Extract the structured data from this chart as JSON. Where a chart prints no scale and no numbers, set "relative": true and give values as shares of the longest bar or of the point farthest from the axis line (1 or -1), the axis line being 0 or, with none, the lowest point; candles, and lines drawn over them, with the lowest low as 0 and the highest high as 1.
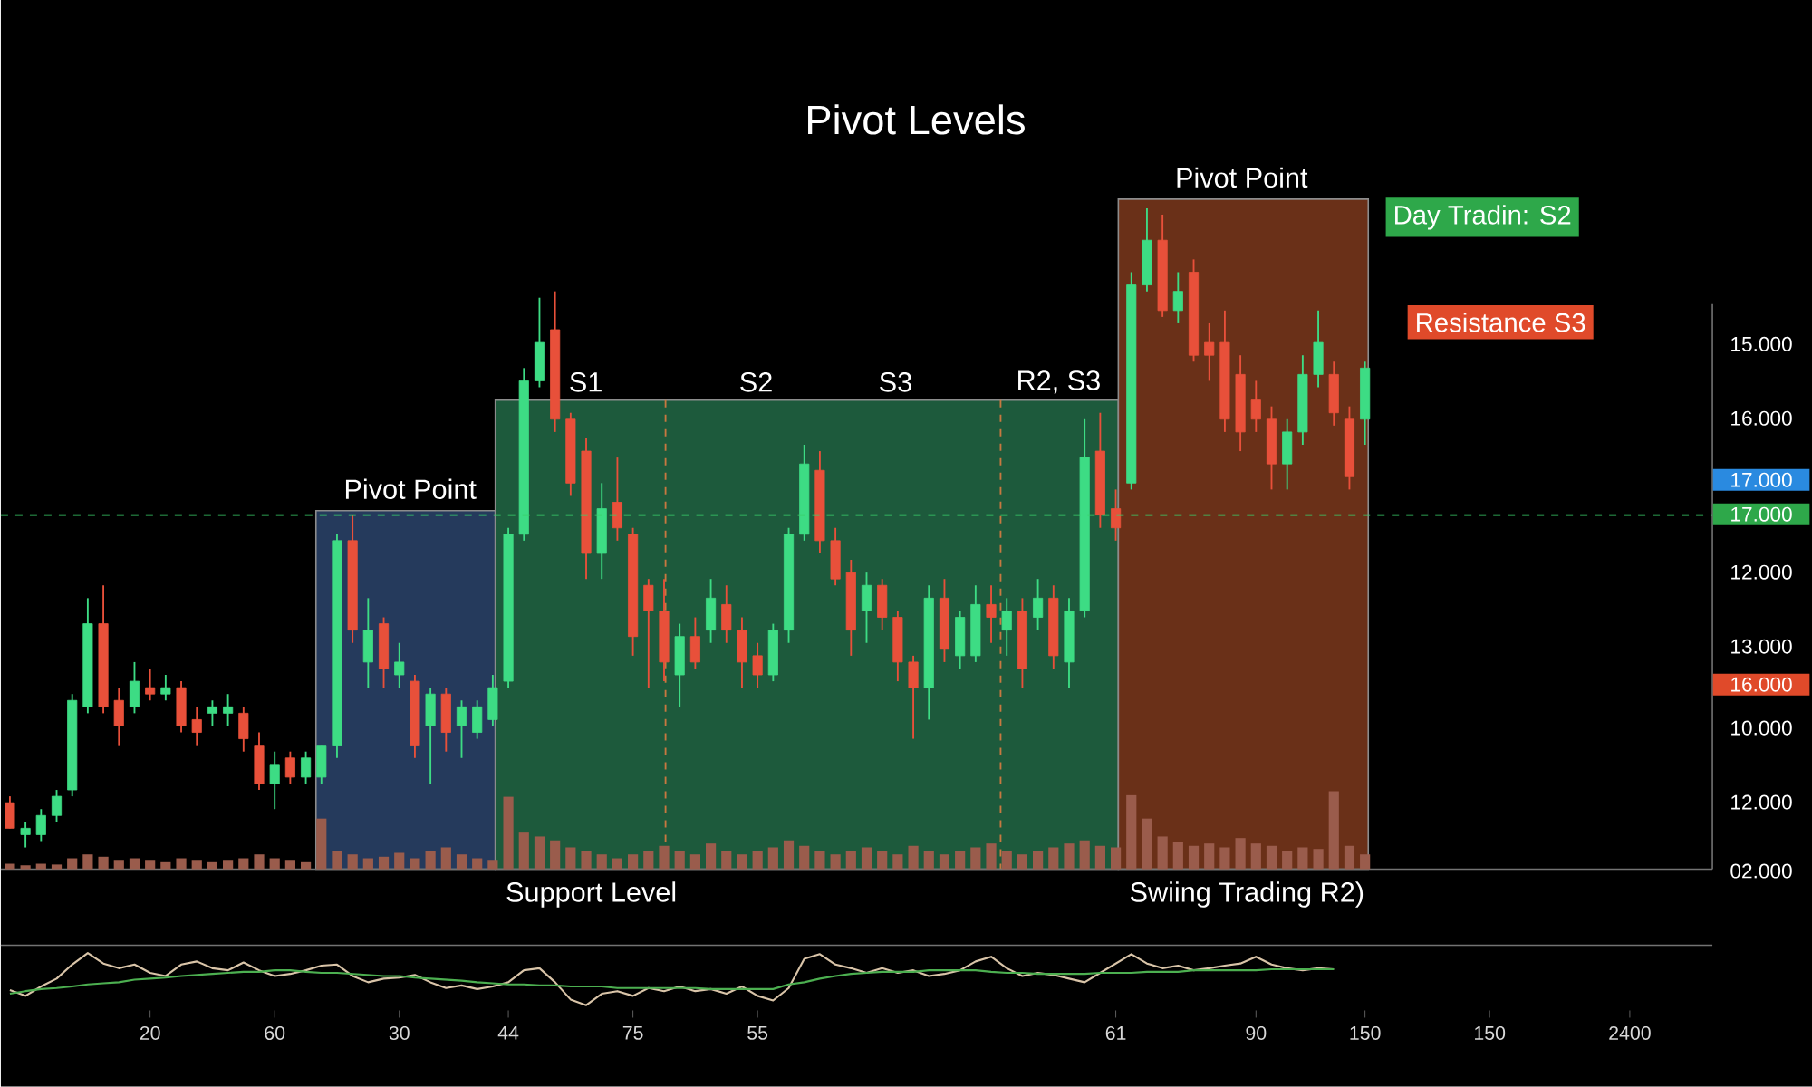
{
  "chart_data": [
    {
      "type": "candlestick",
      "title": "Pivot Levels",
      "relative": true,
      "tick_labels": false,
      "categories": [
        null,
        null,
        null,
        null,
        null,
        null,
        null,
        null,
        null,
        null,
        null,
        null,
        null,
        null,
        null,
        null,
        null,
        null,
        null,
        null,
        null,
        null,
        null,
        null,
        null,
        null,
        null,
        null,
        null,
        null,
        null,
        null,
        null,
        null,
        null,
        null,
        null,
        null,
        null,
        null,
        null,
        null,
        null,
        null,
        null,
        null,
        null,
        null,
        null,
        null,
        null,
        null,
        null,
        null,
        null,
        null,
        null,
        null,
        null,
        null,
        null,
        null,
        null,
        null,
        null,
        null,
        null,
        null,
        null,
        null,
        null,
        null,
        null,
        null,
        null,
        null,
        null,
        null,
        null,
        null,
        null,
        null,
        null,
        null,
        null,
        null,
        null,
        null,
        null,
        null,
        null,
        null,
        null,
        null,
        null,
        null,
        null,
        null,
        null,
        null,
        null,
        null,
        null,
        null,
        null
      ],
      "ohlc": [
        [
          0.07,
          0.08,
          0.03,
          0.03
        ],
        [
          0.02,
          0.04,
          0,
          0.03
        ],
        [
          0.02,
          0.06,
          0.01,
          0.05
        ],
        [
          0.05,
          0.09,
          0.04,
          0.08
        ],
        [
          0.09,
          0.24,
          0.08,
          0.23
        ],
        [
          0.22,
          0.39,
          0.21,
          0.35
        ],
        [
          0.35,
          0.41,
          0.21,
          0.22
        ],
        [
          0.23,
          0.25,
          0.16,
          0.19
        ],
        [
          0.22,
          0.29,
          0.21,
          0.26
        ],
        [
          0.25,
          0.28,
          0.23,
          0.24
        ],
        [
          0.24,
          0.27,
          0.23,
          0.25
        ],
        [
          0.25,
          0.26,
          0.18,
          0.19
        ],
        [
          0.2,
          0.22,
          0.16,
          0.18
        ],
        [
          0.21,
          0.23,
          0.19,
          0.22
        ],
        [
          0.21,
          0.24,
          0.19,
          0.22
        ],
        [
          0.21,
          0.22,
          0.15,
          0.17
        ],
        [
          0.16,
          0.18,
          0.09,
          0.1
        ],
        [
          0.1,
          0.15,
          0.06,
          0.13
        ],
        [
          0.14,
          0.15,
          0.1,
          0.11
        ],
        [
          0.11,
          0.15,
          0.1,
          0.14
        ],
        [
          0.11,
          0.16,
          0.1,
          0.16
        ],
        [
          0.16,
          0.49,
          0.14,
          0.48
        ],
        [
          0.48,
          0.52,
          0.32,
          0.34
        ],
        [
          0.29,
          0.39,
          0.25,
          0.34
        ],
        [
          0.35,
          0.36,
          0.25,
          0.28
        ],
        [
          0.27,
          0.32,
          0.25,
          0.29
        ],
        [
          0.26,
          0.27,
          0.14,
          0.16
        ],
        [
          0.19,
          0.25,
          0.1,
          0.24
        ],
        [
          0.24,
          0.25,
          0.15,
          0.18
        ],
        [
          0.19,
          0.23,
          0.14,
          0.22
        ],
        [
          0.18,
          0.23,
          0.17,
          0.22
        ],
        [
          0.2,
          0.27,
          0.19,
          0.25
        ],
        [
          0.26,
          0.5,
          0.25,
          0.49
        ],
        [
          0.49,
          0.75,
          0.48,
          0.73
        ],
        [
          0.73,
          0.86,
          0.72,
          0.79
        ],
        [
          0.81,
          0.87,
          0.65,
          0.67
        ],
        [
          0.67,
          0.68,
          0.55,
          0.57
        ],
        [
          0.62,
          0.64,
          0.42,
          0.46
        ],
        [
          0.46,
          0.57,
          0.42,
          0.53
        ],
        [
          0.54,
          0.61,
          0.48,
          0.5
        ],
        [
          0.49,
          0.5,
          0.3,
          0.33
        ],
        [
          0.41,
          0.42,
          0.25,
          0.37
        ],
        [
          0.37,
          0.42,
          0.26,
          0.29
        ],
        [
          0.27,
          0.35,
          0.22,
          0.33
        ],
        [
          0.33,
          0.36,
          0.28,
          0.29
        ],
        [
          0.34,
          0.42,
          0.32,
          0.39
        ],
        [
          0.38,
          0.41,
          0.32,
          0.34
        ],
        [
          0.34,
          0.36,
          0.25,
          0.29
        ],
        [
          0.3,
          0.32,
          0.25,
          0.27
        ],
        [
          0.27,
          0.35,
          0.26,
          0.34
        ],
        [
          0.34,
          0.5,
          0.32,
          0.49
        ],
        [
          0.49,
          0.63,
          0.48,
          0.6
        ],
        [
          0.59,
          0.62,
          0.46,
          0.48
        ],
        [
          0.48,
          0.5,
          0.41,
          0.42
        ],
        [
          0.43,
          0.45,
          0.3,
          0.34
        ],
        [
          0.37,
          0.43,
          0.32,
          0.41
        ],
        [
          0.41,
          0.42,
          0.34,
          0.36
        ],
        [
          0.36,
          0.37,
          0.26,
          0.29
        ],
        [
          0.29,
          0.3,
          0.17,
          0.25
        ],
        [
          0.25,
          0.41,
          0.2,
          0.39
        ],
        [
          0.39,
          0.42,
          0.29,
          0.31
        ],
        [
          0.3,
          0.37,
          0.28,
          0.36
        ],
        [
          0.3,
          0.41,
          0.29,
          0.38
        ],
        [
          0.38,
          0.41,
          0.32,
          0.36
        ],
        [
          0.34,
          0.39,
          0.3,
          0.37
        ],
        [
          0.37,
          0.39,
          0.25,
          0.28
        ],
        [
          0.36,
          0.42,
          0.34,
          0.39
        ],
        [
          0.39,
          0.41,
          0.28,
          0.3
        ],
        [
          0.29,
          0.39,
          0.25,
          0.37
        ],
        [
          0.37,
          0.67,
          0.36,
          0.61
        ],
        [
          0.62,
          0.68,
          0.5,
          0.52
        ],
        [
          0.53,
          0.56,
          0.48,
          0.5
        ],
        [
          0.57,
          0.9,
          0.56,
          0.88
        ],
        [
          0.88,
          1,
          0.87,
          0.95
        ],
        [
          0.95,
          0.99,
          0.83,
          0.84
        ],
        [
          0.84,
          0.9,
          0.82,
          0.87
        ],
        [
          0.9,
          0.92,
          0.76,
          0.77
        ],
        [
          0.79,
          0.82,
          0.73,
          0.77
        ],
        [
          0.79,
          0.84,
          0.65,
          0.67
        ],
        [
          0.74,
          0.77,
          0.62,
          0.65
        ],
        [
          0.7,
          0.73,
          0.65,
          0.67
        ],
        [
          0.67,
          0.69,
          0.56,
          0.6
        ],
        [
          0.6,
          0.67,
          0.56,
          0.65
        ],
        [
          0.65,
          0.77,
          0.63,
          0.74
        ],
        [
          0.74,
          0.84,
          0.72,
          0.79
        ],
        [
          0.74,
          0.76,
          0.66,
          0.68
        ],
        [
          0.67,
          0.69,
          0.56,
          0.58
        ],
        [
          0.67,
          0.76,
          0.63,
          0.75
        ],
        null,
        null,
        null,
        null,
        null,
        null,
        null,
        null,
        null,
        null,
        null,
        null,
        null,
        null,
        null,
        null,
        null
      ],
      "ref_lines": [
        {
          "axis": "y",
          "value": 0.52,
          "color": "#3ad06a",
          "line_style": "dashed"
        }
      ],
      "annotations": [
        "S1",
        "S2",
        "S3",
        "R2, S3",
        "Pivot Point",
        "Day Tradin: S2",
        "Resistance S3",
        "15.000",
        "16.000",
        "17.000",
        "17.000",
        "12.000",
        "13.000",
        "16.000",
        "10.000",
        "12.000",
        "02.000",
        "Pivot Point",
        "Support Level",
        "Swiing Trading R2)"
      ]
    },
    {
      "type": "bar",
      "relative": true,
      "tick_labels": false,
      "color": "#9a5c4c",
      "categories": [
        null,
        null,
        null,
        null,
        null,
        null,
        null,
        null,
        null,
        null,
        null,
        null,
        null,
        null,
        null,
        null,
        null,
        null,
        null,
        null,
        null,
        null,
        null,
        null,
        null,
        null,
        null,
        null,
        null,
        null,
        null,
        null,
        null,
        null,
        null,
        null,
        null,
        null,
        null,
        null,
        null,
        null,
        null,
        null,
        null,
        null,
        null,
        null,
        null,
        null,
        null,
        null,
        null,
        null,
        null,
        null,
        null,
        null,
        null,
        null,
        null,
        null,
        null,
        null,
        null,
        null,
        null,
        null,
        null,
        null,
        null,
        null,
        null,
        null,
        null,
        null,
        null,
        null,
        null,
        null,
        null,
        null,
        null,
        null,
        null,
        null,
        null,
        null,
        null,
        null,
        null,
        null,
        null,
        null,
        null,
        null,
        null,
        null,
        null,
        null,
        null,
        null,
        null,
        null,
        null
      ],
      "values": [
        0.07,
        0.05,
        0.07,
        0.06,
        0.14,
        0.19,
        0.16,
        0.12,
        0.14,
        0.12,
        0.09,
        0.14,
        0.12,
        0.09,
        0.12,
        0.14,
        0.19,
        0.14,
        0.12,
        0.09,
        0.65,
        0.23,
        0.19,
        0.14,
        0.16,
        0.21,
        0.14,
        0.23,
        0.28,
        0.19,
        0.14,
        0.12,
        0.93,
        0.47,
        0.42,
        0.37,
        0.28,
        0.23,
        0.19,
        0.14,
        0.19,
        0.23,
        0.3,
        0.23,
        0.19,
        0.33,
        0.23,
        0.19,
        0.23,
        0.28,
        0.37,
        0.3,
        0.23,
        0.19,
        0.23,
        0.28,
        0.23,
        0.19,
        0.3,
        0.23,
        0.19,
        0.23,
        0.28,
        0.33,
        0.23,
        0.19,
        0.23,
        0.28,
        0.33,
        0.37,
        0.3,
        0.28,
        0.95,
        0.65,
        0.42,
        0.35,
        0.3,
        0.33,
        0.28,
        0.4,
        0.33,
        0.3,
        0.23,
        0.28,
        0.26,
        1,
        0.3,
        0.19,
        null,
        null,
        null,
        null,
        null,
        null,
        null,
        null,
        null,
        null,
        null,
        null,
        null,
        null,
        null,
        null,
        null
      ]
    },
    {
      "type": "line",
      "relative": true,
      "tick_labels": "x",
      "categories": [
        null,
        null,
        null,
        null,
        null,
        null,
        null,
        null,
        null,
        "20",
        null,
        null,
        null,
        null,
        null,
        null,
        null,
        "60",
        null,
        null,
        null,
        null,
        null,
        null,
        null,
        "30",
        null,
        null,
        null,
        null,
        null,
        null,
        "44",
        null,
        null,
        null,
        null,
        null,
        null,
        null,
        "75",
        null,
        null,
        null,
        null,
        null,
        null,
        null,
        "55",
        null,
        null,
        null,
        null,
        null,
        null,
        null,
        null,
        null,
        null,
        null,
        null,
        null,
        null,
        null,
        null,
        null,
        null,
        null,
        null,
        null,
        null,
        "61",
        null,
        null,
        null,
        null,
        null,
        null,
        null,
        null,
        "90",
        null,
        null,
        null,
        null,
        null,
        null,
        "150",
        null,
        null,
        null,
        null,
        null,
        null,
        null,
        "150",
        null,
        null,
        null,
        null,
        null,
        null,
        null,
        null,
        "2400"
      ],
      "series": [
        {
          "color": "#d9c4a8",
          "values": [
            0.29,
            0.18,
            0.36,
            0.51,
            0.78,
            1,
            0.8,
            0.71,
            0.78,
            0.62,
            0.56,
            0.78,
            0.84,
            0.71,
            0.67,
            0.82,
            0.67,
            0.56,
            0.6,
            0.67,
            0.76,
            0.78,
            0.56,
            0.44,
            0.51,
            0.53,
            0.58,
            0.44,
            0.33,
            0.38,
            0.31,
            0.36,
            0.44,
            0.67,
            0.71,
            0.44,
            0.11,
            0,
            0.22,
            0.27,
            0.18,
            0.33,
            0.27,
            0.36,
            0.27,
            0.31,
            0.22,
            0.36,
            0.18,
            0.09,
            0.33,
            0.89,
            0.98,
            0.78,
            0.71,
            0.62,
            0.71,
            0.62,
            0.67,
            0.56,
            0.6,
            0.67,
            0.84,
            0.93,
            0.71,
            0.56,
            0.62,
            0.58,
            0.51,
            0.44,
            0.62,
            0.8,
            0.98,
            0.8,
            0.71,
            0.76,
            0.67,
            0.71,
            0.76,
            0.8,
            0.93,
            0.78,
            0.71,
            0.67,
            0.71,
            0.69,
            null,
            null,
            null,
            null,
            null,
            null,
            null,
            null,
            null,
            null,
            null,
            null,
            null,
            null,
            null,
            null,
            null,
            null,
            null
          ]
        },
        {
          "color": "#4caf50",
          "values": [
            0.22,
            0.27,
            0.31,
            0.33,
            0.36,
            0.4,
            0.42,
            0.44,
            0.49,
            0.51,
            0.53,
            0.56,
            0.58,
            0.6,
            0.62,
            0.64,
            0.64,
            0.67,
            0.67,
            0.64,
            0.62,
            0.62,
            0.6,
            0.58,
            0.56,
            0.56,
            0.53,
            0.51,
            0.49,
            0.47,
            0.44,
            0.42,
            0.4,
            0.4,
            0.38,
            0.38,
            0.36,
            0.36,
            0.36,
            0.33,
            0.33,
            0.33,
            0.33,
            0.33,
            0.33,
            0.31,
            0.31,
            0.31,
            0.31,
            0.31,
            0.4,
            0.44,
            0.51,
            0.56,
            0.6,
            0.62,
            0.64,
            0.64,
            0.64,
            0.67,
            0.67,
            0.67,
            0.67,
            0.64,
            0.62,
            0.62,
            0.6,
            0.6,
            0.6,
            0.6,
            0.62,
            0.62,
            0.62,
            0.64,
            0.64,
            0.64,
            0.67,
            0.67,
            0.67,
            0.67,
            0.67,
            0.69,
            0.69,
            0.69,
            0.69,
            0.69,
            null,
            null,
            null,
            null,
            null,
            null,
            null,
            null,
            null,
            null,
            null,
            null,
            null,
            null,
            null,
            null,
            null,
            null,
            null
          ]
        }
      ]
    }
  ]
}
